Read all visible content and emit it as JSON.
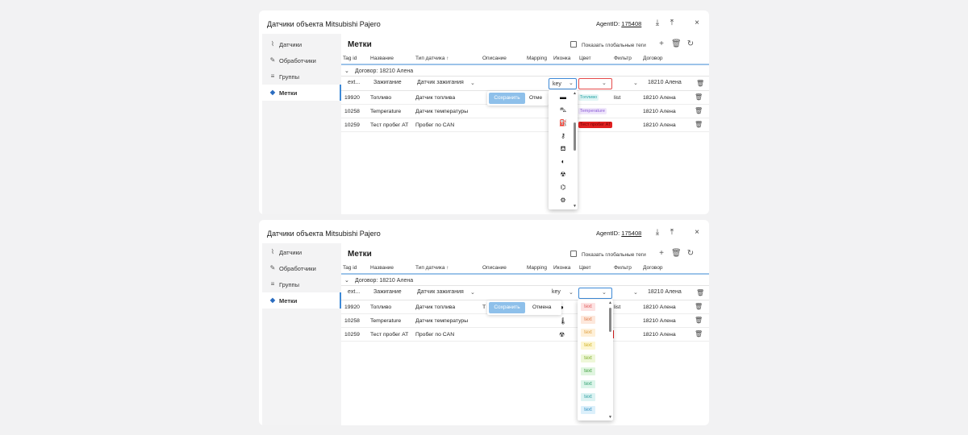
{
  "window": {
    "title": "Датчики объекта Mitsubishi Pajero",
    "agent_label": "AgentID:",
    "agent_id": "175408",
    "download_icon": "download-icon",
    "upload_icon": "upload-icon",
    "close_icon": "close-icon"
  },
  "sidebar": {
    "items": [
      {
        "label": "Датчики",
        "icon": "paperclip-icon"
      },
      {
        "label": "Обработчики",
        "icon": "wrench-icon"
      },
      {
        "label": "Группы",
        "icon": "layers-icon"
      },
      {
        "label": "Метки",
        "icon": "tag-icon"
      }
    ],
    "active": "Метки"
  },
  "main": {
    "title": "Метки",
    "global_tags_label": "Показать глобальные теги",
    "toolbar_icons": [
      "plus-icon",
      "trash-icon",
      "refresh-icon"
    ]
  },
  "table": {
    "headers": [
      "Tag id",
      "Название",
      "Тип датчика ↑",
      "Описание",
      "Mapping",
      "Иконка",
      "Цвет",
      "Фильтр",
      "Договор"
    ],
    "group_label": "Договор: 18210 Алена",
    "edit_row": {
      "tag_id": "ext...",
      "name": "Зажигание",
      "type": "Датчик зажигания",
      "icon_value": "key",
      "contract": "18210 Алена"
    },
    "rows": [
      {
        "tag_id": "19920",
        "name": "Топливо",
        "type": "Датчик топлива",
        "filter": "list",
        "contract": "18210 Алена",
        "color_tag": "Топливо"
      },
      {
        "tag_id": "10258",
        "name": "Temperature",
        "type": "Датчик температуры",
        "filter": "",
        "contract": "18210 Алена",
        "color_tag": "Temperature"
      },
      {
        "tag_id": "10259",
        "name": "Тест пробег AT",
        "type": "Пробег по CAN",
        "filter": "",
        "contract": "18210 Алена",
        "color_tag": "Тест пробег AT"
      }
    ]
  },
  "edit_actions": {
    "save": "Сохранить",
    "cancel": "Отмена",
    "cancel_cut": "Отме"
  },
  "truncated_cell": "Т",
  "icon_dropdown": {
    "items": [
      "car-battery-icon",
      "car-crash-icon",
      "fuel-pump-icon",
      "key-icon",
      "oil-can-icon",
      "shield-icon",
      "radiation-icon",
      "satellite-dish-icon",
      "gear-icon"
    ]
  },
  "color_dropdown": {
    "item_label": "text",
    "items": [
      {
        "bg": "#fde2e2",
        "fg": "#e05a5a"
      },
      {
        "bg": "#fde8dc",
        "fg": "#e07a4a"
      },
      {
        "bg": "#fef0d8",
        "fg": "#e0a040"
      },
      {
        "bg": "#fdf6d2",
        "fg": "#d0b020"
      },
      {
        "bg": "#eef7d8",
        "fg": "#80b030"
      },
      {
        "bg": "#e0f5e0",
        "fg": "#40a040"
      },
      {
        "bg": "#dcf5ea",
        "fg": "#30a070"
      },
      {
        "bg": "#dcf3f3",
        "fg": "#30a0a0"
      },
      {
        "bg": "#dcf0fb",
        "fg": "#3090c0"
      }
    ]
  },
  "colors": {
    "accent": "#3e8ad7",
    "save_button": "#8ec0ea",
    "error_border": "#e54b4b",
    "red_tag": "#e02020"
  }
}
